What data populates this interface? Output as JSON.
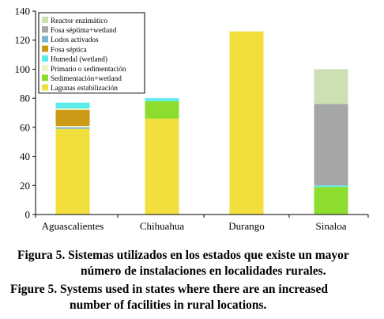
{
  "chart_data": {
    "type": "bar",
    "stacked": true,
    "categories": [
      "Aguascalientes",
      "Chihuahua",
      "Durango",
      "Sinaloa"
    ],
    "ylim": [
      0,
      140
    ],
    "yticks": [
      0,
      20,
      40,
      60,
      80,
      100,
      120,
      140
    ],
    "grid": false,
    "legend_position": "top-left",
    "series": [
      {
        "name": "Lagunas estabilización",
        "color": "#f2de3c",
        "values": [
          59,
          66,
          126,
          0
        ]
      },
      {
        "name": "Sedimentación+wetland",
        "color": "#8ddd2e",
        "values": [
          0,
          12,
          0,
          19
        ]
      },
      {
        "name": "Primario o sedimentación",
        "color": "#f2f2c8",
        "values": [
          0,
          0,
          0,
          0
        ]
      },
      {
        "name": "Humedal (wetland)",
        "color": "#5cecec",
        "values": [
          0,
          2,
          0,
          1
        ]
      },
      {
        "name": "Fosa séptica",
        "color": "#cc9914",
        "values": [
          0,
          0,
          0,
          0
        ]
      },
      {
        "name": "Lodos activados",
        "color": "#7ab6ce",
        "values": [
          0,
          0,
          0,
          0
        ]
      },
      {
        "name": "Fosa séptima+wetland",
        "color": "#a5a6a8",
        "values": [
          0,
          0,
          0,
          56
        ]
      },
      {
        "name": "Reactor enzimático",
        "color": "#cde0b4",
        "values": [
          0,
          0,
          0,
          24
        ]
      }
    ],
    "extra_segments": {
      "Aguascalientes": [
        {
          "series": "Lodos activados",
          "value": 1
        },
        {
          "series": "Primario o sedimentación",
          "value": 1
        },
        {
          "series": "Fosa séptica",
          "value": 11
        },
        {
          "series": "Primario o sedimentación",
          "value": 1
        },
        {
          "series": "Humedal (wetland)",
          "value": 4
        }
      ]
    },
    "title": "",
    "xlabel": "",
    "ylabel": ""
  },
  "caption": {
    "es_label": "Figura 5.",
    "es_line1": "Sistemas utilizados en los estados que existe un mayor",
    "es_line2": "número de instalaciones en localidades rurales.",
    "en_label": "Figure 5.",
    "en_line1": "Systems used in states where there are an increased",
    "en_line2": "number of facilities in rural locations."
  }
}
